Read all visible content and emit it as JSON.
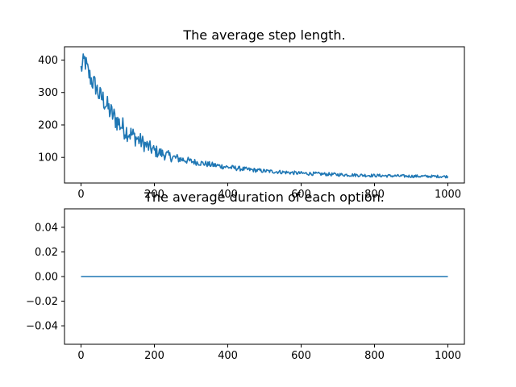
{
  "colors": {
    "series": "#1f77b4"
  },
  "chart_data": [
    {
      "type": "line",
      "title": "The average step length.",
      "xlabel": "",
      "ylabel": "",
      "xlim": [
        -45,
        1045
      ],
      "ylim": [
        21,
        441
      ],
      "xticks": [
        0,
        200,
        400,
        600,
        800,
        1000
      ],
      "yticks": [
        100,
        200,
        300,
        400
      ],
      "grid": false,
      "series": [
        {
          "trend_points": [
            [
              0,
              372
            ],
            [
              10,
              400
            ],
            [
              20,
              360
            ],
            [
              30,
              335
            ],
            [
              40,
              320
            ],
            [
              50,
              290
            ],
            [
              60,
              280
            ],
            [
              80,
              240
            ],
            [
              100,
              210
            ],
            [
              120,
              185
            ],
            [
              150,
              160
            ],
            [
              180,
              135
            ],
            [
              200,
              120
            ],
            [
              250,
              100
            ],
            [
              300,
              88
            ],
            [
              350,
              78
            ],
            [
              400,
              70
            ],
            [
              450,
              63
            ],
            [
              500,
              58
            ],
            [
              600,
              51
            ],
            [
              700,
              47
            ],
            [
              800,
              44
            ],
            [
              900,
              42
            ],
            [
              1000,
              41
            ]
          ],
          "noise_points": [
            [
              0,
              30
            ],
            [
              100,
              35
            ],
            [
              200,
              20
            ],
            [
              300,
              10
            ],
            [
              500,
              6
            ],
            [
              1000,
              4
            ]
          ]
        }
      ]
    },
    {
      "type": "line",
      "title": "The average duration of each option.",
      "xlabel": "",
      "ylabel": "",
      "xlim": [
        -45,
        1045
      ],
      "ylim": [
        -0.055,
        0.055
      ],
      "xticks": [
        0,
        200,
        400,
        600,
        800,
        1000
      ],
      "yticks": [
        -0.04,
        -0.02,
        0.0,
        0.02,
        0.04
      ],
      "ytick_labels": [
        "−0.04",
        "−0.02",
        "0.00",
        "0.02",
        "0.04"
      ],
      "grid": false,
      "series": [
        {
          "x": [
            0,
            1000
          ],
          "values": [
            0,
            0
          ]
        }
      ]
    }
  ]
}
